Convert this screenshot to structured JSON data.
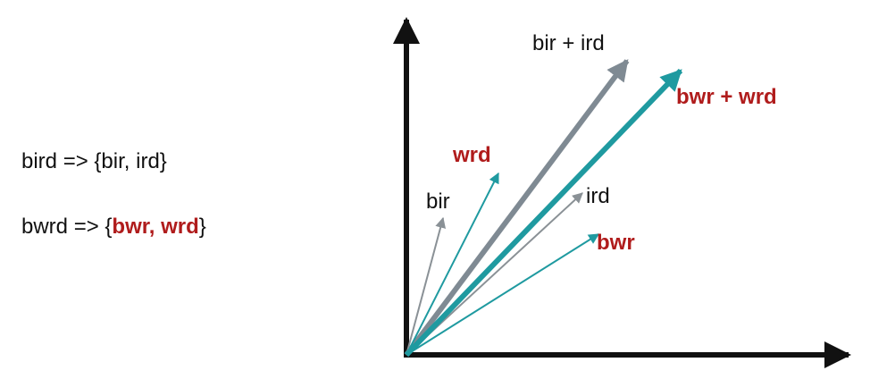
{
  "equations": [
    {
      "word": "bird",
      "arrow": "=>",
      "open": "{",
      "parts": [
        "bir",
        "ird"
      ],
      "sep": ", ",
      "close": "}",
      "highlight": false
    },
    {
      "word": "bwrd",
      "arrow": "=>",
      "open": "{",
      "parts": [
        "bwr",
        "wrd"
      ],
      "sep": ", ",
      "close": "}",
      "highlight": true
    }
  ],
  "vectors": {
    "bir": {
      "label": "bir",
      "color": "#8a9196",
      "label_color": "#111111",
      "bold": false
    },
    "ird": {
      "label": "ird",
      "color": "#8a9196",
      "label_color": "#111111",
      "bold": false
    },
    "bir_plus_ird": {
      "label": "bir + ird",
      "color": "#7f8a93",
      "label_color": "#111111",
      "bold": false
    },
    "wrd": {
      "label": "wrd",
      "color": "#1f9aa0",
      "label_color": "#b01c1c",
      "bold": true
    },
    "bwr": {
      "label": "bwr",
      "color": "#1f9aa0",
      "label_color": "#b01c1c",
      "bold": true
    },
    "bwr_plus_wrd": {
      "label": "bwr + wrd",
      "color": "#1f9aa0",
      "label_color": "#b01c1c",
      "bold": true
    }
  },
  "colors": {
    "axis": "#111111",
    "accent_red": "#b01c1c",
    "teal": "#1f9aa0",
    "gray": "#8a9196"
  }
}
